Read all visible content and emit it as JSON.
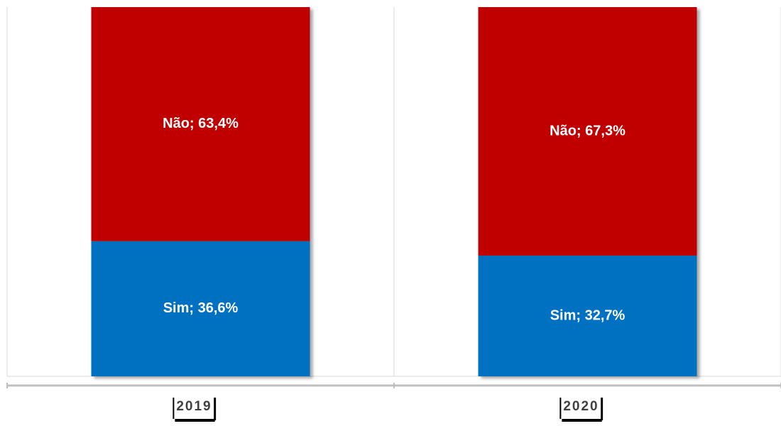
{
  "chart_data": {
    "type": "stacked_bar",
    "categories": [
      "2019",
      "2020"
    ],
    "ylim": [
      0,
      100
    ],
    "series": [
      {
        "name": "Sim",
        "color": "#0070c0",
        "values": [
          36.6,
          32.7
        ],
        "value_labels": [
          "Sim; 36,6%",
          "Sim; 32,7%"
        ]
      },
      {
        "name": "Não",
        "color": "#c00000",
        "values": [
          63.4,
          67.3
        ],
        "value_labels": [
          "Não; 63,4%",
          "Não; 67,3%"
        ]
      }
    ]
  }
}
